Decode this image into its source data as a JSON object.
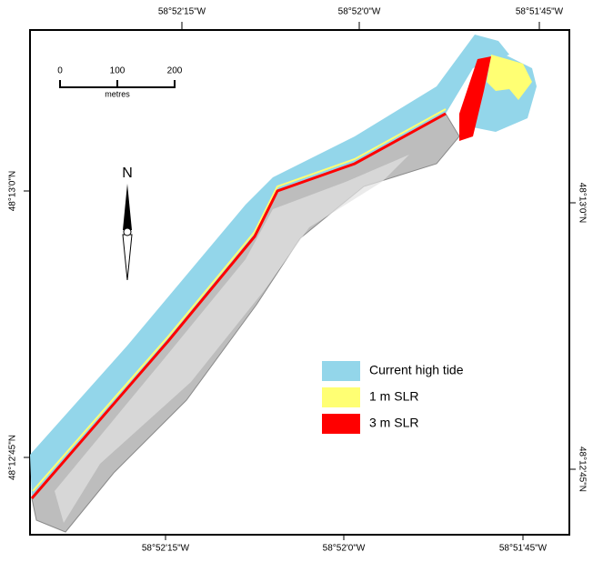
{
  "map": {
    "top_labels": [
      "58°52'15\"W",
      "58°52'0\"W",
      "58°51'45\"W"
    ],
    "bottom_labels": [
      "58°52'15\"W",
      "58°52'0\"W",
      "58°51'45\"W"
    ],
    "left_labels": [
      "48°13'0\"N",
      "48°12'45\"N"
    ],
    "right_labels": [
      "48°13'0\"N",
      "48°12'45\"N"
    ],
    "scale_bar": {
      "ticks": [
        "0",
        "100",
        "200"
      ],
      "unit": "metres"
    },
    "north_label": "N",
    "legend": [
      {
        "label": "Current high tide",
        "color": "#93d6ea"
      },
      {
        "label": "1 m SLR",
        "color": "#ffff73"
      },
      {
        "label": "3 m SLR",
        "color": "#ff0000"
      }
    ]
  }
}
